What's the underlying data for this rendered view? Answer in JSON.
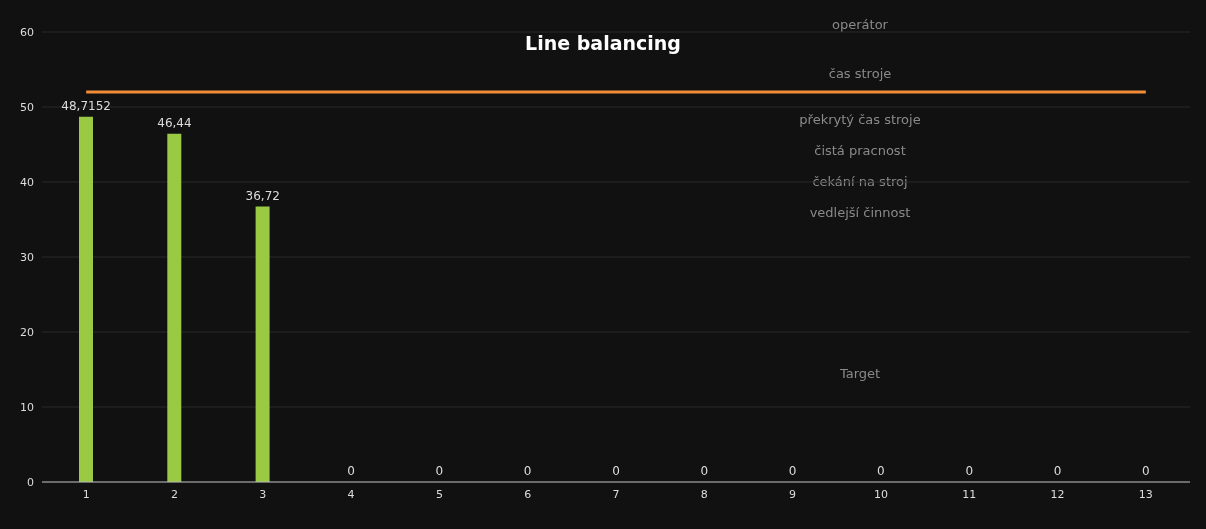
{
  "chart_data": {
    "type": "bar",
    "title": "Line balancing",
    "categories": [
      "1",
      "2",
      "3",
      "4",
      "5",
      "6",
      "7",
      "8",
      "9",
      "10",
      "11",
      "12",
      "13"
    ],
    "series": [
      {
        "color": "#9ac943",
        "values": [
          48.7152,
          46.44,
          36.72,
          0,
          0,
          0,
          0,
          0,
          0,
          0,
          0,
          0,
          0
        ],
        "value_labels": [
          "48,7152",
          "46,44",
          "36,72",
          "0",
          "0",
          "0",
          "0",
          "0",
          "0",
          "0",
          "0",
          "0",
          "0"
        ]
      },
      {
        "type": "line",
        "color": "#f28c38",
        "values": [
          52,
          52,
          52,
          52,
          52,
          52,
          52,
          52,
          52,
          52,
          52,
          52,
          52
        ]
      }
    ],
    "ylim": [
      0,
      60
    ],
    "yticks": [
      0,
      10,
      20,
      30,
      40,
      50,
      60
    ],
    "grid": "y",
    "legend": false,
    "marker": "none",
    "line_style": "solid",
    "annotations": [
      "operátor",
      "čas stroje",
      "překrytý čas stroje",
      "čistá pracnost",
      "čekání na stroj",
      "vedlejší činnost",
      "Target"
    ]
  }
}
